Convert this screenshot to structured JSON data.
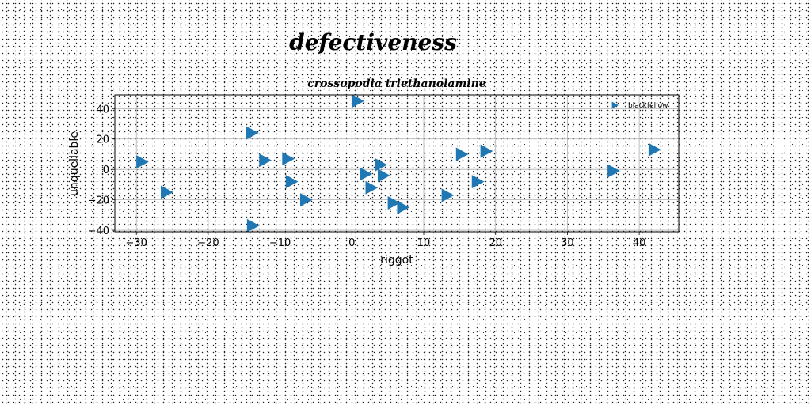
{
  "figure": {
    "suptitle": "defectiveness"
  },
  "chart_data": {
    "type": "scatter",
    "title": "crossopodia triethanolamine",
    "xlabel": "riggot",
    "ylabel": "unquellable",
    "xlim": [
      -33,
      45.5
    ],
    "ylim": [
      -41,
      49
    ],
    "xticks": [
      -30,
      -20,
      -10,
      0,
      10,
      20,
      30,
      40
    ],
    "yticks": [
      -40,
      -20,
      0,
      20,
      40
    ],
    "xtick_labels": [
      "−30",
      "−20",
      "−10",
      "0",
      "10",
      "20",
      "30",
      "40"
    ],
    "ytick_labels": [
      "−40",
      "−20",
      "0",
      "20",
      "40"
    ],
    "grid": true,
    "legend_position": "top-right",
    "marker": "triangle-right",
    "series": [
      {
        "name": "blackfellow",
        "color": "#1f77b4",
        "x": [
          0.7,
          -14.0,
          -29.3,
          -12.2,
          -9.0,
          -8.5,
          -25.9,
          -13.9,
          -6.5,
          1.8,
          3.9,
          4.3,
          2.6,
          5.7,
          7.0,
          13.2,
          15.2,
          17.4,
          18.6,
          36.3,
          42.0
        ],
        "y": [
          45,
          24,
          5,
          6,
          7,
          -8,
          -15,
          -37,
          -20,
          -3,
          3,
          -4,
          -12,
          -22,
          -25,
          -17,
          10,
          -8,
          12,
          -1,
          13
        ]
      }
    ]
  }
}
